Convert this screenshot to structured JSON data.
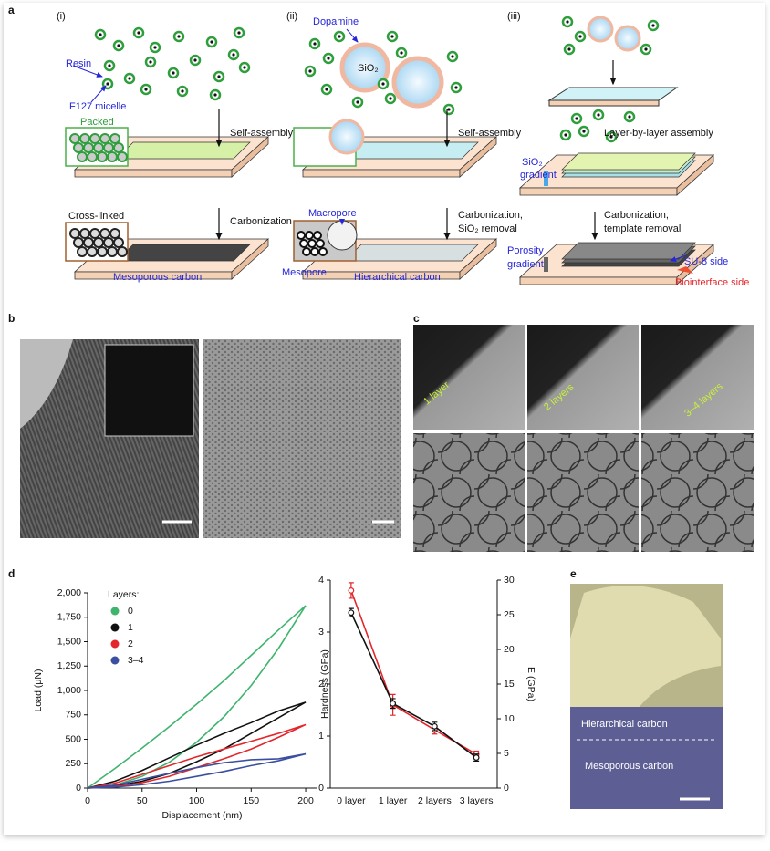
{
  "panel_labels": [
    "a",
    "b",
    "c",
    "d",
    "e"
  ],
  "panel_a": {
    "i": {
      "label": "(i)",
      "resin": "Resin",
      "micelle": "F127 micelle",
      "packed": "Packed",
      "step1": "Self-assembly",
      "crosslinked": "Cross-linked",
      "step2": "Carbonization",
      "product": "Mesoporous carbon"
    },
    "ii": {
      "label": "(ii)",
      "dopamine": "Dopamine",
      "sio2": "SiO₂",
      "step1": "Self-assembly",
      "macropore": "Macropore",
      "step2_line1": "Carbonization,",
      "step2_line2": "SiO₂ removal",
      "mesopore": "Mesopore",
      "product": "Hierarchical carbon"
    },
    "iii": {
      "label": "(iii)",
      "step1": "Layer-by-layer assembly",
      "gradient1_line1": "SiO₂",
      "gradient1_line2": "gradient",
      "step2_line1": "Carbonization,",
      "step2_line2": "template removal",
      "gradient2_line1": "Porosity",
      "gradient2_line2": "gradient",
      "side1": "SU-8 side",
      "side2": "Biointerface side"
    }
  },
  "panel_c": {
    "labels": [
      "1 layer",
      "2 layers",
      "3–4 layers"
    ]
  },
  "panel_e": {
    "labels": [
      "Hierarchical carbon",
      "Mesoporous carbon"
    ]
  },
  "chart_data": [
    {
      "type": "line",
      "xlabel": "Displacement (nm)",
      "ylabel": "Load (μN)",
      "xlim": [
        0,
        210
      ],
      "xticks": [
        0,
        50,
        100,
        150,
        200
      ],
      "ylim": [
        0,
        2000
      ],
      "yticks": [
        0,
        250,
        500,
        750,
        {
          "value": 1000,
          "label": "1,000"
        },
        {
          "value": 1250,
          "label": "1,250"
        },
        {
          "value": 1500,
          "label": "1,500"
        },
        {
          "value": 1750,
          "label": "1,750"
        },
        {
          "value": 2000,
          "label": "2,000"
        }
      ],
      "legend_title": "Layers:",
      "series": [
        {
          "name": "0",
          "color": "#3fb46e",
          "x": [
            0,
            25,
            50,
            75,
            100,
            125,
            150,
            175,
            200,
            175,
            150,
            125,
            100,
            75,
            50,
            25,
            0
          ],
          "values": [
            0,
            30,
            120,
            265,
            470,
            730,
            1050,
            1430,
            1870,
            1620,
            1360,
            1100,
            860,
            630,
            410,
            200,
            0
          ]
        },
        {
          "name": "1",
          "color": "#111111",
          "x": [
            0,
            25,
            50,
            75,
            100,
            125,
            150,
            175,
            200,
            175,
            150,
            125,
            100,
            75,
            50,
            25,
            0
          ],
          "values": [
            0,
            20,
            70,
            150,
            270,
            400,
            560,
            720,
            880,
            790,
            670,
            560,
            440,
            310,
            180,
            70,
            0
          ]
        },
        {
          "name": "2",
          "color": "#e3262b",
          "x": [
            0,
            25,
            50,
            75,
            100,
            125,
            150,
            175,
            200,
            175,
            150,
            125,
            100,
            75,
            50,
            25,
            0
          ],
          "values": [
            0,
            15,
            55,
            120,
            210,
            300,
            400,
            520,
            650,
            560,
            480,
            400,
            320,
            230,
            140,
            50,
            0
          ]
        },
        {
          "name": "3–4",
          "color": "#3b4fa0",
          "x": [
            0,
            25,
            50,
            75,
            100,
            125,
            150,
            175,
            200,
            175,
            150,
            125,
            100,
            75,
            50,
            25,
            0
          ],
          "values": [
            0,
            10,
            35,
            70,
            120,
            170,
            230,
            280,
            350,
            300,
            290,
            260,
            210,
            150,
            90,
            30,
            0
          ]
        }
      ]
    },
    {
      "type": "line",
      "categories": [
        "0 layer",
        "1 layer",
        "2 layers",
        "3 layers"
      ],
      "ylabel": "Hardness (GPa)",
      "y2label": "E (GPa)",
      "ylim": [
        0,
        4
      ],
      "yticks": [
        0,
        1,
        2,
        3,
        4
      ],
      "y2lim": [
        0,
        30
      ],
      "y2ticks": [
        0,
        5,
        10,
        15,
        20,
        25,
        30
      ],
      "series": [
        {
          "color": "#e3262b",
          "values": [
            3.8,
            1.6,
            1.12,
            0.65
          ],
          "errors": [
            0.15,
            0.2,
            0.08,
            0.06
          ]
        },
        {
          "color": "#111111",
          "axis": "y2",
          "values": [
            25.3,
            12.2,
            8.9,
            4.4
          ],
          "errors": [
            0.6,
            0.7,
            0.6,
            0.5
          ]
        }
      ]
    }
  ]
}
